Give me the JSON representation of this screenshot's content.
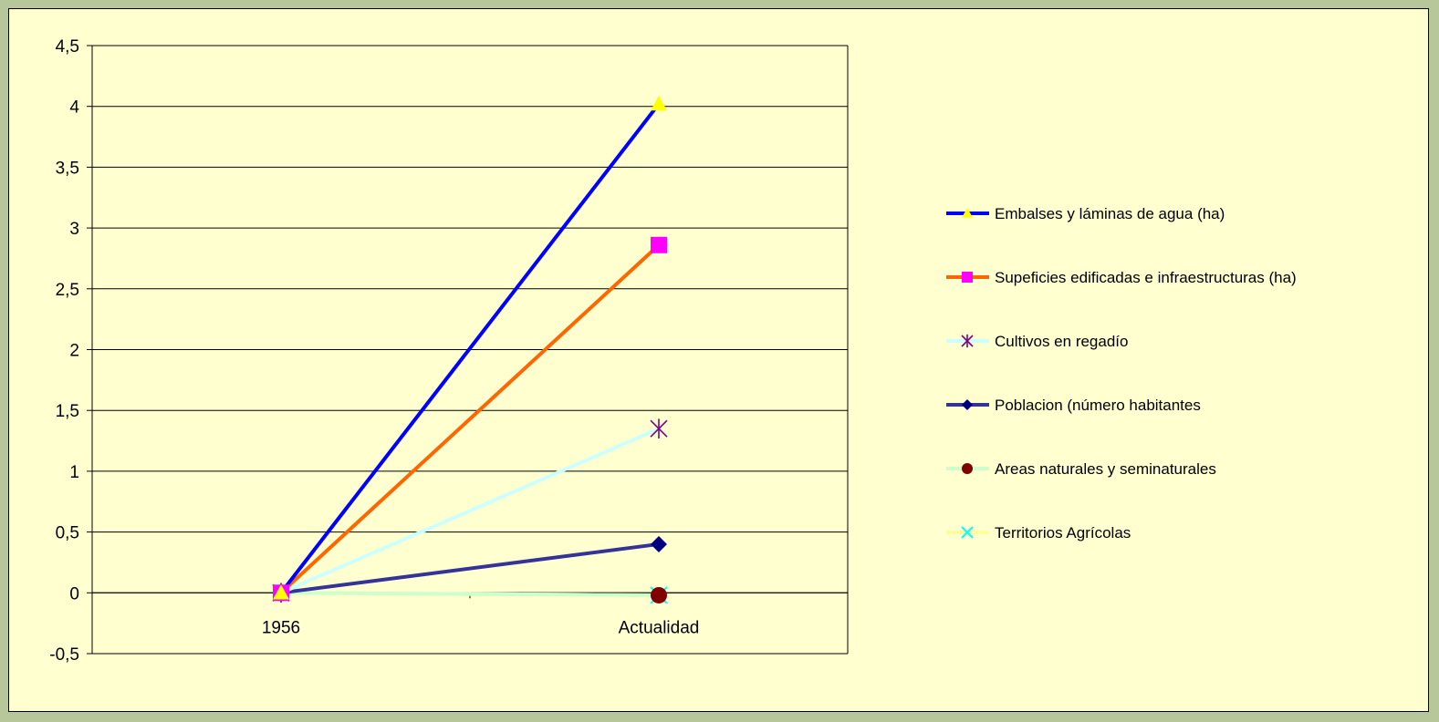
{
  "chart_data": {
    "type": "line",
    "categories": [
      "1956",
      "Actualidad"
    ],
    "ylim": [
      -0.5,
      4.5
    ],
    "yticks": [
      "4,5",
      "4",
      "3,5",
      "3",
      "2,5",
      "2",
      "1,5",
      "1",
      "0,5",
      "0",
      "-0,5"
    ],
    "ytick_values": [
      4.5,
      4,
      3.5,
      3,
      2.5,
      2,
      1.5,
      1,
      0.5,
      0,
      -0.5
    ],
    "grid": true,
    "legend_position": "right",
    "series": [
      {
        "name": "Embalses y láminas de agua (ha)",
        "values": [
          0,
          4.02
        ],
        "color": "#0000ff",
        "marker": "triangle",
        "marker_color": "#ffff00"
      },
      {
        "name": "Supeficies edificadas e infraestructuras (ha)",
        "values": [
          0,
          2.86
        ],
        "color": "#ff6600",
        "marker": "square",
        "marker_color": "#ff00ff"
      },
      {
        "name": "Cultivos en regadío",
        "values": [
          0,
          1.35
        ],
        "color": "#ccffff",
        "marker": "star",
        "marker_color": "#800080"
      },
      {
        "name": "Poblacion (número habitantes",
        "values": [
          0,
          0.4
        ],
        "color": "#333399",
        "marker": "diamond",
        "marker_color": "#000080"
      },
      {
        "name": "Areas naturales y seminaturales",
        "values": [
          0,
          -0.02
        ],
        "color": "#ccffcc",
        "marker": "circle",
        "marker_color": "#800000"
      },
      {
        "name": "Territorios Agrícolas",
        "values": [
          0,
          -0.02
        ],
        "color": "#ffff99",
        "marker": "x",
        "marker_color": "#00ffff"
      }
    ]
  }
}
